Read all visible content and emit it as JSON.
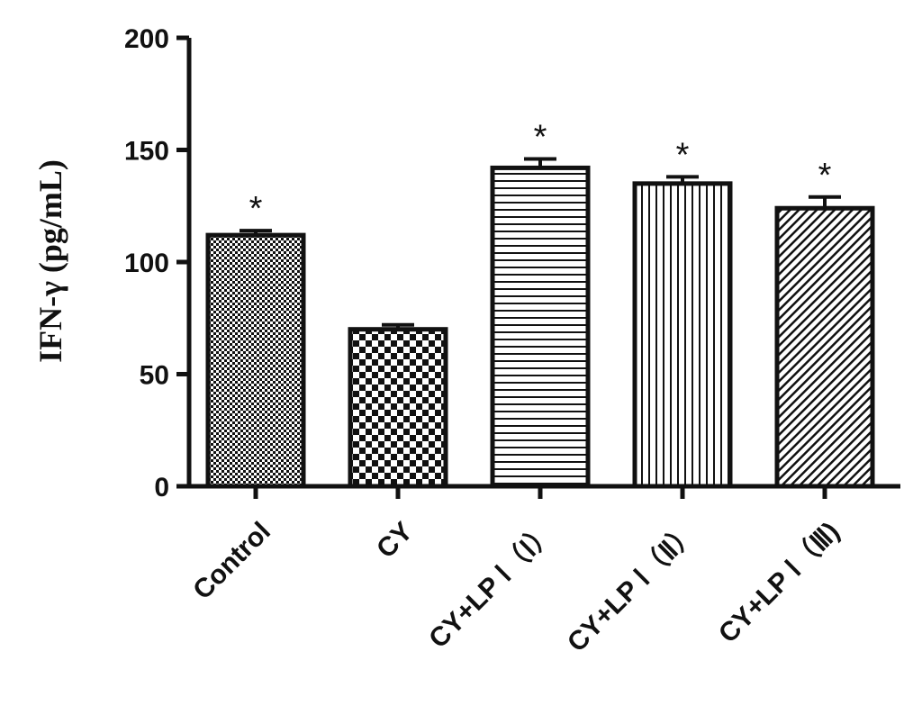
{
  "chart_data": {
    "type": "bar",
    "title": "",
    "xlabel": "",
    "ylabel": "IFN-γ (pg/mL)",
    "ylim": [
      0,
      200
    ],
    "yticks": [
      0,
      50,
      100,
      150,
      200
    ],
    "grid": false,
    "categories": [
      "Control",
      "CY",
      "CY+LP Ⅰ（Ⅰ）",
      "CY+LP Ⅰ（Ⅱ）",
      "CY+LP Ⅰ（Ⅲ)"
    ],
    "values": [
      112,
      70,
      142,
      135,
      124
    ],
    "error": [
      2,
      2,
      4,
      3,
      5
    ],
    "annotations": [
      "*",
      "",
      "*",
      "*",
      "*"
    ],
    "patterns": [
      "fine-checker",
      "checker",
      "horizontal-lines",
      "vertical-lines",
      "diagonal-lines"
    ]
  }
}
